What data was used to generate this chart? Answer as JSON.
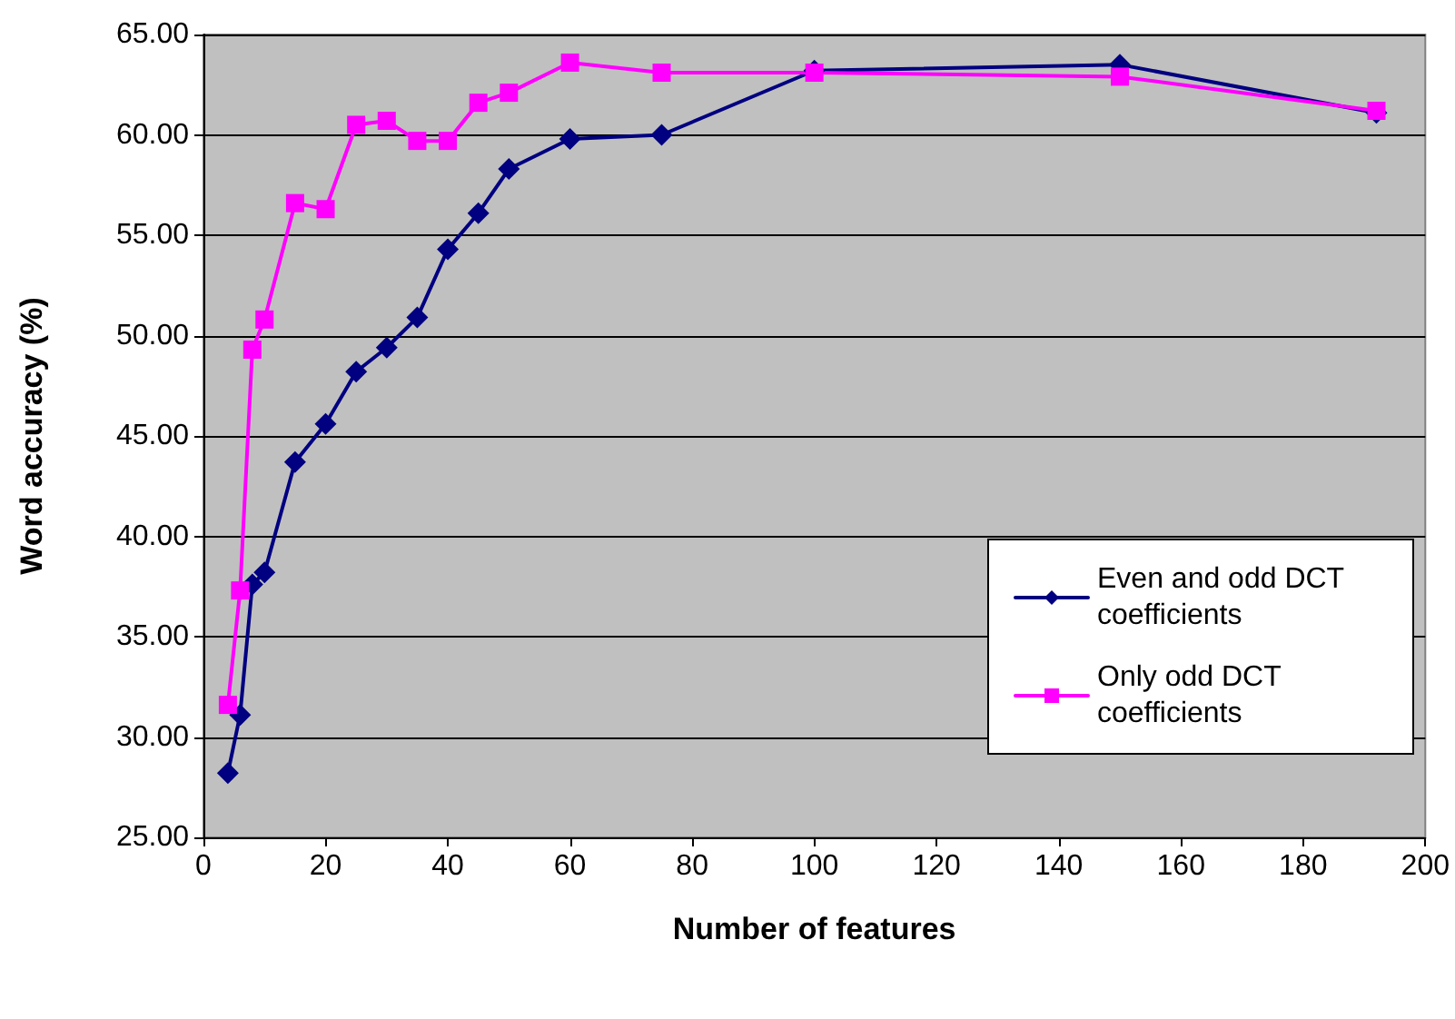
{
  "chart_data": {
    "type": "line",
    "xlabel": "Number of features",
    "ylabel": "Word accuracy (%)",
    "x": [
      4,
      6,
      8,
      10,
      15,
      20,
      25,
      30,
      35,
      40,
      45,
      50,
      60,
      75,
      100,
      150,
      192
    ],
    "series": [
      {
        "name": "Even and odd DCT coefficients",
        "color": "#000080",
        "marker": "diamond",
        "values": [
          28.2,
          31.1,
          37.6,
          38.2,
          43.7,
          45.6,
          48.2,
          49.4,
          50.9,
          54.3,
          56.1,
          58.3,
          59.8,
          60.0,
          63.2,
          63.5,
          61.1
        ]
      },
      {
        "name": "Only odd DCT coefficients",
        "color": "#ff00ff",
        "marker": "square",
        "values": [
          31.6,
          37.3,
          49.3,
          50.8,
          56.6,
          56.3,
          60.5,
          60.7,
          59.7,
          59.7,
          61.6,
          62.1,
          63.6,
          63.1,
          63.1,
          62.9,
          61.2
        ]
      }
    ],
    "xlim": [
      0,
      200
    ],
    "xticks": [
      0,
      20,
      40,
      60,
      80,
      100,
      120,
      140,
      160,
      180,
      200
    ],
    "ylim": [
      25,
      65
    ],
    "yticks": [
      {
        "value": 25,
        "label": "25.00"
      },
      {
        "value": 30,
        "label": "30.00"
      },
      {
        "value": 35,
        "label": "35.00"
      },
      {
        "value": 40,
        "label": "40.00"
      },
      {
        "value": 45,
        "label": "45.00"
      },
      {
        "value": 50,
        "label": "50.00"
      },
      {
        "value": 55,
        "label": "55.00"
      },
      {
        "value": 60,
        "label": "60.00"
      },
      {
        "value": 65,
        "label": "65.00"
      }
    ],
    "grid": "y",
    "legend": "bottom right"
  }
}
